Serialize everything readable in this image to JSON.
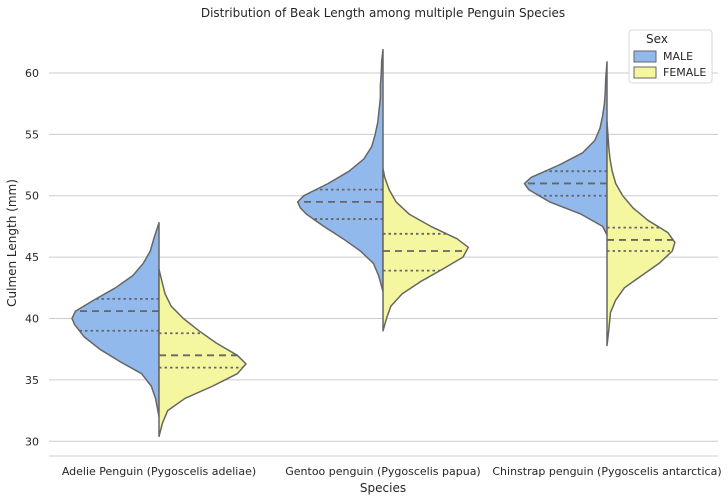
{
  "chart_data": {
    "type": "violin",
    "title": "Distribution of Beak Length among multiple Penguin Species",
    "xlabel": "Species",
    "ylabel": "Culmen Length (mm)",
    "categories": [
      "Adelie Penguin (Pygoscelis adeliae)",
      "Gentoo penguin (Pygoscelis papua)",
      "Chinstrap penguin (Pygoscelis antarctica)"
    ],
    "yticks": [
      30,
      35,
      40,
      45,
      50,
      55,
      60
    ],
    "ylim": [
      28.8,
      63.5
    ],
    "grid": "horizontal",
    "split": true,
    "inner": "quartile",
    "legend": {
      "title": "Sex",
      "placement": "top-right",
      "entries": [
        {
          "label": "MALE",
          "color": "#92b9ec"
        },
        {
          "label": "FEMALE",
          "color": "#f5f7a0"
        }
      ]
    },
    "series": [
      {
        "name": "MALE",
        "color": "#92b9ec",
        "side": "left",
        "violins": [
          {
            "category": "Adelie Penguin (Pygoscelis adeliae)",
            "quartiles": [
              39.0,
              40.6,
              41.6
            ],
            "profile": [
              [
                32.0,
                0.0
              ],
              [
                33.5,
                0.04
              ],
              [
                34.5,
                0.09
              ],
              [
                35.5,
                0.2
              ],
              [
                36.5,
                0.45
              ],
              [
                37.5,
                0.68
              ],
              [
                38.5,
                0.86
              ],
              [
                39.5,
                0.97
              ],
              [
                40.0,
                1.0
              ],
              [
                40.6,
                0.96
              ],
              [
                41.5,
                0.75
              ],
              [
                42.5,
                0.5
              ],
              [
                43.5,
                0.3
              ],
              [
                44.5,
                0.18
              ],
              [
                45.5,
                0.1
              ],
              [
                46.5,
                0.06
              ],
              [
                47.8,
                0.0
              ]
            ]
          },
          {
            "category": "Gentoo penguin (Pygoscelis papua)",
            "quartiles": [
              48.1,
              49.5,
              50.5
            ],
            "profile": [
              [
                42.2,
                0.0
              ],
              [
                43.5,
                0.05
              ],
              [
                44.5,
                0.11
              ],
              [
                45.5,
                0.26
              ],
              [
                46.5,
                0.46
              ],
              [
                47.5,
                0.68
              ],
              [
                48.5,
                0.88
              ],
              [
                49.0,
                0.95
              ],
              [
                49.5,
                0.98
              ],
              [
                50.0,
                0.91
              ],
              [
                51.0,
                0.63
              ],
              [
                52.0,
                0.39
              ],
              [
                53.0,
                0.22
              ],
              [
                54.0,
                0.13
              ],
              [
                55.0,
                0.09
              ],
              [
                56.0,
                0.06
              ],
              [
                57.0,
                0.045
              ],
              [
                58.0,
                0.03
              ],
              [
                59.0,
                0.03
              ],
              [
                60.0,
                0.02
              ],
              [
                61.0,
                0.015
              ],
              [
                61.9,
                0.0
              ]
            ]
          },
          {
            "category": "Chinstrap penguin (Pygoscelis antarctica)",
            "quartiles": [
              50.0,
              51.0,
              52.0
            ],
            "profile": [
              [
                46.8,
                0.0
              ],
              [
                47.5,
                0.05
              ],
              [
                48.5,
                0.3
              ],
              [
                49.5,
                0.66
              ],
              [
                50.5,
                0.9
              ],
              [
                51.0,
                0.95
              ],
              [
                51.5,
                0.87
              ],
              [
                52.5,
                0.55
              ],
              [
                53.5,
                0.28
              ],
              [
                54.5,
                0.14
              ],
              [
                55.5,
                0.08
              ],
              [
                56.5,
                0.05
              ],
              [
                57.5,
                0.03
              ],
              [
                58.5,
                0.02
              ],
              [
                59.5,
                0.015
              ],
              [
                60.9,
                0.0
              ]
            ]
          }
        ]
      },
      {
        "name": "FEMALE",
        "color": "#f5f7a0",
        "side": "right",
        "violins": [
          {
            "category": "Adelie Penguin (Pygoscelis adeliae)",
            "quartiles": [
              36.0,
              37.0,
              38.8
            ],
            "profile": [
              [
                30.4,
                0.0
              ],
              [
                31.5,
                0.04
              ],
              [
                32.5,
                0.1
              ],
              [
                33.5,
                0.3
              ],
              [
                34.5,
                0.62
              ],
              [
                35.5,
                0.9
              ],
              [
                36.3,
                1.0
              ],
              [
                37.0,
                0.9
              ],
              [
                38.0,
                0.66
              ],
              [
                39.0,
                0.46
              ],
              [
                40.0,
                0.28
              ],
              [
                41.0,
                0.14
              ],
              [
                42.0,
                0.07
              ],
              [
                43.0,
                0.035
              ],
              [
                44.0,
                0.0
              ]
            ]
          },
          {
            "category": "Gentoo penguin (Pygoscelis papua)",
            "quartiles": [
              43.9,
              45.5,
              46.9
            ],
            "profile": [
              [
                39.0,
                0.0
              ],
              [
                40.0,
                0.04
              ],
              [
                41.0,
                0.09
              ],
              [
                42.0,
                0.22
              ],
              [
                43.0,
                0.43
              ],
              [
                44.0,
                0.68
              ],
              [
                45.0,
                0.92
              ],
              [
                45.8,
                0.98
              ],
              [
                46.5,
                0.85
              ],
              [
                47.5,
                0.55
              ],
              [
                48.5,
                0.3
              ],
              [
                49.5,
                0.15
              ],
              [
                50.5,
                0.07
              ],
              [
                51.5,
                0.02
              ],
              [
                52.2,
                0.0
              ]
            ]
          },
          {
            "category": "Chinstrap penguin (Pygoscelis antarctica)",
            "quartiles": [
              45.5,
              46.4,
              47.4
            ],
            "profile": [
              [
                37.8,
                0.0
              ],
              [
                39.0,
                0.02
              ],
              [
                40.5,
                0.04
              ],
              [
                41.5,
                0.1
              ],
              [
                42.5,
                0.2
              ],
              [
                43.5,
                0.4
              ],
              [
                44.5,
                0.6
              ],
              [
                45.5,
                0.75
              ],
              [
                46.2,
                0.78
              ],
              [
                47.0,
                0.7
              ],
              [
                48.0,
                0.47
              ],
              [
                49.0,
                0.3
              ],
              [
                50.0,
                0.18
              ],
              [
                51.0,
                0.1
              ],
              [
                52.0,
                0.06
              ],
              [
                53.0,
                0.035
              ],
              [
                54.0,
                0.02
              ],
              [
                55.0,
                0.01
              ],
              [
                56.0,
                0.0
              ]
            ]
          }
        ]
      }
    ]
  }
}
